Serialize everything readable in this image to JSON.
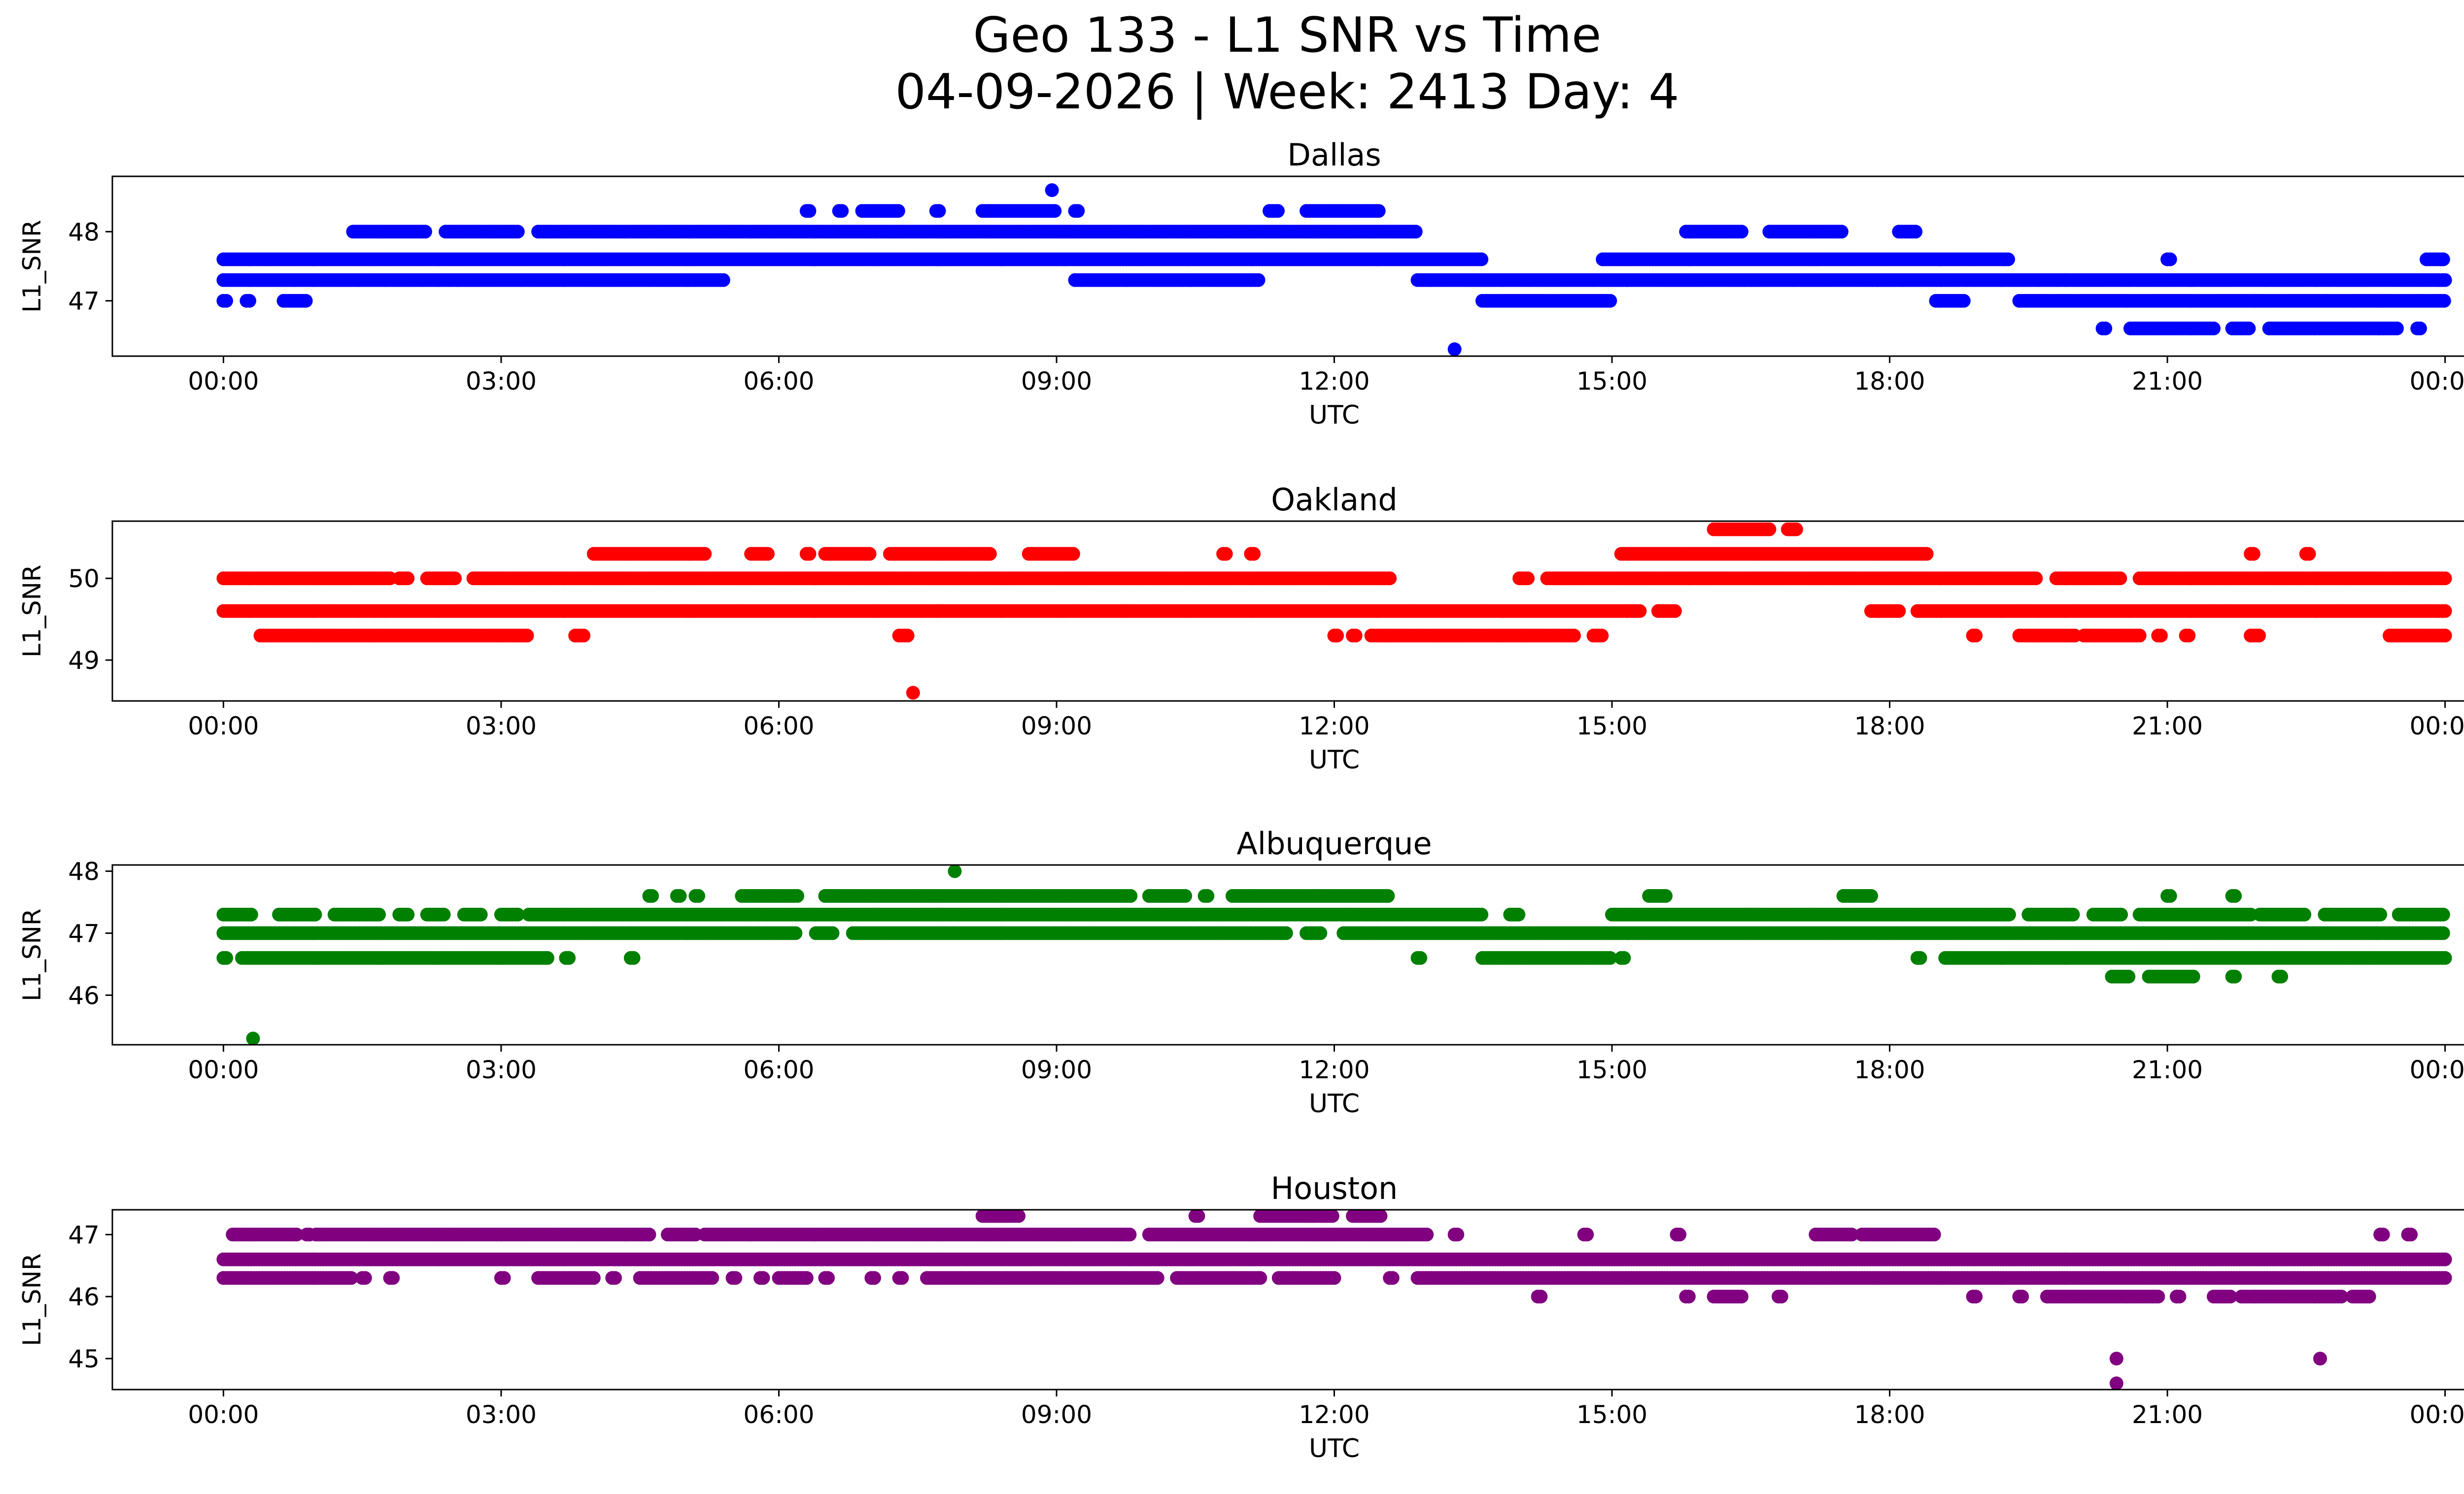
{
  "figure": {
    "title_line1": "Geo 133 - L1 SNR vs Time",
    "title_line2": "04-09-2026 | Week: 2413 Day: 4"
  },
  "chart_data": [
    {
      "type": "scatter",
      "title": "Dallas",
      "xlabel": "UTC",
      "ylabel": "L1_SNR",
      "color": "#0000ff",
      "xticks": [
        "00:00",
        "03:00",
        "06:00",
        "09:00",
        "12:00",
        "15:00",
        "18:00",
        "21:00",
        "00:00"
      ],
      "yticks": [
        47,
        48
      ],
      "xlim_hours": [
        -1.2,
        25.2
      ],
      "ylim": [
        46.2,
        48.8
      ],
      "segments": [
        {
          "y": 47.6,
          "ranges": [
            [
              0.0,
              13.6
            ],
            [
              14.9,
              19.3
            ],
            [
              21.0,
              21.05
            ],
            [
              23.8,
              24.0
            ]
          ]
        },
        {
          "y": 47.3,
          "ranges": [
            [
              0.0,
              5.4
            ],
            [
              9.2,
              11.2
            ],
            [
              12.9,
              24.0
            ]
          ]
        },
        {
          "y": 48.0,
          "ranges": [
            [
              1.4,
              2.2
            ],
            [
              2.4,
              3.2
            ],
            [
              3.4,
              12.9
            ],
            [
              15.8,
              16.4
            ],
            [
              16.7,
              17.5
            ],
            [
              18.1,
              18.3
            ]
          ]
        },
        {
          "y": 47.0,
          "ranges": [
            [
              0.0,
              0.05
            ],
            [
              0.25,
              0.3
            ],
            [
              0.65,
              0.9
            ],
            [
              13.6,
              15.0
            ],
            [
              18.5,
              18.8
            ],
            [
              19.4,
              24.0
            ]
          ]
        },
        {
          "y": 48.3,
          "ranges": [
            [
              6.3,
              6.35
            ],
            [
              6.65,
              6.7
            ],
            [
              6.9,
              7.3
            ],
            [
              7.7,
              7.75
            ],
            [
              8.2,
              9.0
            ],
            [
              9.2,
              9.25
            ],
            [
              11.3,
              11.4
            ],
            [
              11.7,
              12.5
            ]
          ]
        },
        {
          "y": 46.6,
          "ranges": [
            [
              20.3,
              20.35
            ],
            [
              20.6,
              21.5
            ],
            [
              21.7,
              21.9
            ],
            [
              22.1,
              23.5
            ],
            [
              23.7,
              23.75
            ]
          ]
        },
        {
          "y": 48.6,
          "ranges": [
            [
              8.95,
              8.97
            ]
          ]
        },
        {
          "y": 46.3,
          "ranges": [
            [
              13.3,
              13.32
            ]
          ]
        }
      ]
    },
    {
      "type": "scatter",
      "title": "Oakland",
      "xlabel": "UTC",
      "ylabel": "L1_SNR",
      "color": "#ff0000",
      "xticks": [
        "00:00",
        "03:00",
        "06:00",
        "09:00",
        "12:00",
        "15:00",
        "18:00",
        "21:00",
        "00:00"
      ],
      "yticks": [
        49,
        50
      ],
      "xlim_hours": [
        -1.2,
        25.2
      ],
      "ylim": [
        48.5,
        50.7
      ],
      "segments": [
        {
          "y": 50.0,
          "ranges": [
            [
              0.0,
              1.8
            ],
            [
              1.9,
              2.0
            ],
            [
              2.2,
              2.5
            ],
            [
              2.7,
              12.6
            ],
            [
              14.0,
              14.1
            ],
            [
              14.3,
              19.6
            ],
            [
              19.8,
              20.5
            ],
            [
              20.7,
              24.0
            ]
          ]
        },
        {
          "y": 49.6,
          "ranges": [
            [
              0.0,
              15.3
            ],
            [
              15.5,
              15.7
            ],
            [
              17.8,
              18.1
            ],
            [
              18.3,
              24.0
            ]
          ]
        },
        {
          "y": 49.3,
          "ranges": [
            [
              0.4,
              3.3
            ],
            [
              3.8,
              3.9
            ],
            [
              7.3,
              7.4
            ],
            [
              12.0,
              12.05
            ],
            [
              12.2,
              12.25
            ],
            [
              12.4,
              14.6
            ],
            [
              14.8,
              14.9
            ],
            [
              18.9,
              18.95
            ],
            [
              19.4,
              20.0
            ],
            [
              20.1,
              20.7
            ],
            [
              20.9,
              20.95
            ],
            [
              21.2,
              21.25
            ],
            [
              21.9,
              22.0
            ],
            [
              23.4,
              24.0
            ]
          ]
        },
        {
          "y": 50.3,
          "ranges": [
            [
              4.0,
              5.2
            ],
            [
              5.7,
              5.9
            ],
            [
              6.3,
              6.35
            ],
            [
              6.5,
              7.0
            ],
            [
              7.2,
              8.3
            ],
            [
              8.7,
              9.2
            ],
            [
              10.8,
              10.85
            ],
            [
              11.1,
              11.15
            ],
            [
              15.1,
              18.4
            ],
            [
              21.9,
              21.95
            ],
            [
              22.5,
              22.55
            ]
          ]
        },
        {
          "y": 50.6,
          "ranges": [
            [
              16.1,
              16.7
            ],
            [
              16.9,
              17.0
            ]
          ]
        },
        {
          "y": 48.6,
          "ranges": [
            [
              7.45,
              7.47
            ]
          ]
        }
      ]
    },
    {
      "type": "scatter",
      "title": "Albuquerque",
      "xlabel": "UTC",
      "ylabel": "L1_SNR",
      "color": "#008000",
      "xticks": [
        "00:00",
        "03:00",
        "06:00",
        "09:00",
        "12:00",
        "15:00",
        "18:00",
        "21:00",
        "00:00"
      ],
      "yticks": [
        46,
        47,
        48
      ],
      "xlim_hours": [
        -1.2,
        25.2
      ],
      "ylim": [
        45.2,
        48.1
      ],
      "segments": [
        {
          "y": 47.0,
          "ranges": [
            [
              0.0,
              6.2
            ],
            [
              6.4,
              6.6
            ],
            [
              6.8,
              11.5
            ],
            [
              11.7,
              11.85
            ],
            [
              12.1,
              24.0
            ]
          ]
        },
        {
          "y": 47.3,
          "ranges": [
            [
              0.0,
              0.3
            ],
            [
              0.6,
              1.0
            ],
            [
              1.2,
              1.7
            ],
            [
              1.9,
              2.0
            ],
            [
              2.2,
              2.4
            ],
            [
              2.6,
              2.8
            ],
            [
              3.0,
              3.2
            ],
            [
              3.3,
              13.6
            ],
            [
              13.9,
              14.0
            ],
            [
              15.0,
              19.3
            ],
            [
              19.5,
              20.0
            ],
            [
              20.2,
              20.5
            ],
            [
              20.7,
              21.9
            ],
            [
              22.0,
              22.5
            ],
            [
              22.7,
              23.3
            ],
            [
              23.5,
              24.0
            ]
          ]
        },
        {
          "y": 46.6,
          "ranges": [
            [
              0.0,
              0.05
            ],
            [
              0.2,
              3.5
            ],
            [
              3.7,
              3.75
            ],
            [
              4.4,
              4.45
            ],
            [
              12.9,
              12.95
            ],
            [
              13.6,
              15.0
            ],
            [
              15.1,
              15.15
            ],
            [
              18.3,
              18.35
            ],
            [
              18.6,
              24.0
            ]
          ]
        },
        {
          "y": 47.6,
          "ranges": [
            [
              4.6,
              4.65
            ],
            [
              4.9,
              4.95
            ],
            [
              5.1,
              5.15
            ],
            [
              5.6,
              6.2
            ],
            [
              6.5,
              9.8
            ],
            [
              10.0,
              10.4
            ],
            [
              10.6,
              10.65
            ],
            [
              10.9,
              12.6
            ],
            [
              15.4,
              15.6
            ],
            [
              17.5,
              17.8
            ],
            [
              21.0,
              21.05
            ],
            [
              21.7,
              21.75
            ]
          ]
        },
        {
          "y": 46.3,
          "ranges": [
            [
              20.4,
              20.6
            ],
            [
              20.8,
              21.3
            ],
            [
              21.7,
              21.75
            ],
            [
              22.2,
              22.25
            ]
          ]
        },
        {
          "y": 48.0,
          "ranges": [
            [
              7.9,
              7.92
            ]
          ]
        },
        {
          "y": 45.3,
          "ranges": [
            [
              0.32,
              0.34
            ]
          ]
        }
      ]
    },
    {
      "type": "scatter",
      "title": "Houston",
      "xlabel": "UTC",
      "ylabel": "L1_SNR",
      "color": "#800080",
      "xticks": [
        "00:00",
        "03:00",
        "06:00",
        "09:00",
        "12:00",
        "15:00",
        "18:00",
        "21:00",
        "00:00"
      ],
      "yticks": [
        45,
        46,
        47
      ],
      "xlim_hours": [
        -1.2,
        25.2
      ],
      "ylim": [
        44.5,
        47.4
      ],
      "segments": [
        {
          "y": 46.6,
          "ranges": [
            [
              0.0,
              24.0
            ]
          ]
        },
        {
          "y": 47.0,
          "ranges": [
            [
              0.1,
              0.8
            ],
            [
              0.9,
              0.95
            ],
            [
              1.0,
              4.6
            ],
            [
              4.8,
              5.1
            ],
            [
              5.2,
              9.8
            ],
            [
              10.0,
              13.0
            ],
            [
              13.3,
              13.35
            ],
            [
              14.7,
              14.75
            ],
            [
              15.7,
              15.75
            ],
            [
              17.2,
              17.6
            ],
            [
              17.7,
              18.5
            ],
            [
              23.3,
              23.35
            ],
            [
              23.6,
              23.65
            ]
          ]
        },
        {
          "y": 46.3,
          "ranges": [
            [
              0.0,
              1.4
            ],
            [
              1.5,
              1.55
            ],
            [
              1.8,
              1.85
            ],
            [
              3.0,
              3.05
            ],
            [
              3.4,
              4.0
            ],
            [
              4.2,
              4.25
            ],
            [
              4.5,
              5.3
            ],
            [
              5.5,
              5.55
            ],
            [
              5.8,
              5.85
            ],
            [
              6.0,
              6.3
            ],
            [
              6.5,
              6.55
            ],
            [
              7.0,
              7.05
            ],
            [
              7.3,
              7.35
            ],
            [
              7.6,
              10.1
            ],
            [
              10.3,
              11.2
            ],
            [
              11.4,
              12.0
            ],
            [
              12.6,
              12.65
            ],
            [
              12.9,
              24.0
            ]
          ]
        },
        {
          "y": 47.3,
          "ranges": [
            [
              8.2,
              8.6
            ],
            [
              10.5,
              10.55
            ],
            [
              11.2,
              12.0
            ],
            [
              12.2,
              12.5
            ]
          ]
        },
        {
          "y": 46.0,
          "ranges": [
            [
              14.2,
              14.25
            ],
            [
              15.8,
              15.85
            ],
            [
              16.1,
              16.4
            ],
            [
              16.8,
              16.85
            ],
            [
              18.9,
              18.95
            ],
            [
              19.4,
              19.45
            ],
            [
              19.7,
              20.9
            ],
            [
              21.1,
              21.15
            ],
            [
              21.5,
              21.7
            ],
            [
              21.8,
              22.9
            ],
            [
              23.0,
              23.2
            ]
          ]
        },
        {
          "y": 45.0,
          "ranges": [
            [
              20.45,
              20.47
            ],
            [
              22.65,
              22.67
            ]
          ]
        },
        {
          "y": 44.6,
          "ranges": [
            [
              20.45,
              20.47
            ]
          ]
        }
      ]
    }
  ]
}
